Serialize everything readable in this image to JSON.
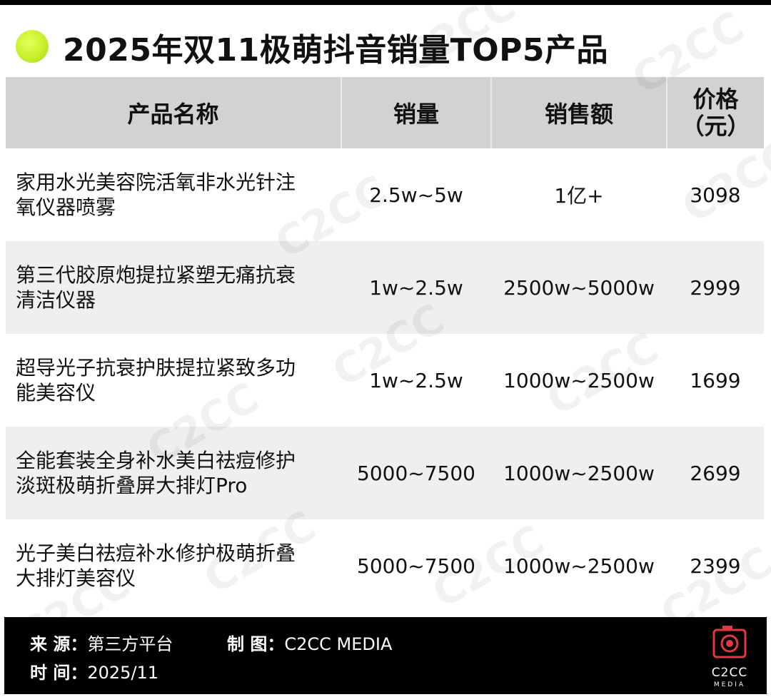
{
  "title": "2025年双11极萌抖音销量TOP5产品",
  "chart_data": {
    "type": "table",
    "title": "2025年双11极萌抖音销量TOP5产品",
    "columns": [
      "产品名称",
      "销量",
      "销售额",
      "价格",
      "（元）"
    ],
    "rows": [
      {
        "name_line1": "家用水光美容院活氧非水光针注",
        "name_line2": "氧仪器喷雾",
        "sales": "2.5w~5w",
        "revenue": "1亿+",
        "price": "3098"
      },
      {
        "name_line1": "第三代胶原炮提拉紧塑无痛抗衰",
        "name_line2": "清洁仪器",
        "sales": "1w~2.5w",
        "revenue": "2500w~5000w",
        "price": "2999"
      },
      {
        "name_line1": "超导光子抗衰护肤提拉紧致多功",
        "name_line2": "能美容仪",
        "sales": "1w~2.5w",
        "revenue": "1000w~2500w",
        "price": "1699"
      },
      {
        "name_line1": "全能套装全身补水美白祛痘修护",
        "name_line2": "淡斑极萌折叠屏大排灯Pro",
        "sales": "5000~7500",
        "revenue": "1000w~2500w",
        "price": "2699"
      },
      {
        "name_line1": "光子美白祛痘补水修护极萌折叠",
        "name_line2": "大排灯美容仪",
        "sales": "5000~7500",
        "revenue": "1000w~2500w",
        "price": "2399"
      }
    ]
  },
  "footer": {
    "source_label": "来  源：",
    "source_value": "第三方平台",
    "maker_label": "制  图：",
    "maker_value": "C2CC MEDIA",
    "time_label": "时  间：",
    "time_value": "2025/11"
  },
  "logo": {
    "text": "C2CC",
    "sub": "MEDIA"
  },
  "watermark": {
    "text": "C2CC"
  },
  "colors": {
    "accent_dot": "#c4f02a",
    "header_bg": "#d2d2d2",
    "alt_row_bg": "#efefef",
    "footer_bg": "#000000"
  }
}
